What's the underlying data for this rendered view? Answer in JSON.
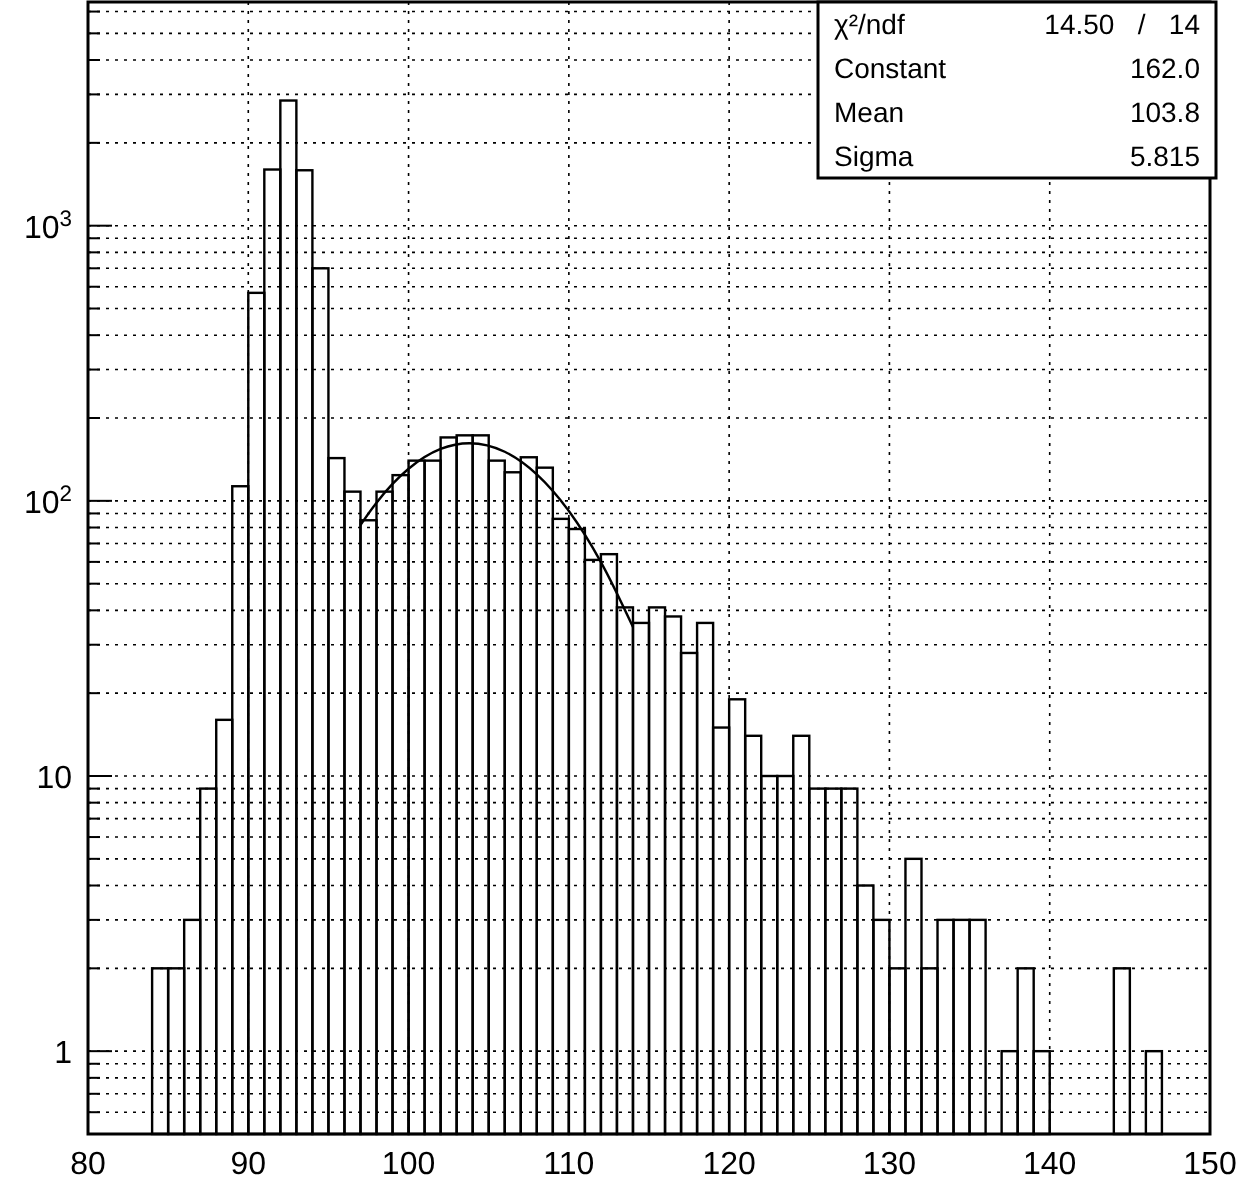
{
  "chart_data": {
    "type": "histogram",
    "bins": [
      84,
      85,
      86,
      87,
      88,
      89,
      90,
      91,
      92,
      93,
      94,
      95,
      96,
      97,
      98,
      99,
      100,
      101,
      102,
      103,
      104,
      105,
      106,
      107,
      108,
      109,
      110,
      111,
      112,
      113,
      114,
      115,
      116,
      117,
      118,
      119,
      120,
      121,
      122,
      123,
      124,
      125,
      126,
      127,
      128,
      129,
      130,
      131,
      132,
      133,
      134,
      135,
      136,
      137,
      138,
      139,
      140,
      144,
      145,
      146,
      147
    ],
    "values": [
      2,
      2,
      3,
      9,
      16,
      113,
      570,
      1600,
      2850,
      1590,
      700,
      143,
      108,
      85,
      108,
      124,
      140,
      140,
      170,
      173,
      173,
      140,
      127,
      144,
      132,
      86,
      79,
      61,
      64,
      41,
      36,
      41,
      38,
      28,
      36,
      15,
      19,
      14,
      10,
      10,
      14,
      9,
      9,
      9,
      4,
      3,
      2,
      5,
      2,
      3,
      3,
      3,
      null,
      1,
      2,
      1,
      null,
      2,
      null,
      1
    ],
    "color": "#000000",
    "series": [
      {
        "type": "line",
        "color": "#000000",
        "x": [
          97,
          98,
          100,
          102,
          103.8,
          106,
          108,
          110,
          112,
          114
        ],
        "values": [
          81.7,
          98.5,
          130.8,
          154.4,
          162,
          150.8,
          124.8,
          91.8,
          59.9,
          34.8
        ]
      }
    ],
    "log": "y",
    "xlim": [
      80,
      150
    ],
    "xticks": [
      80,
      90,
      100,
      110,
      120,
      130,
      140,
      150
    ],
    "ylim": [
      0.5,
      6500
    ],
    "yticks": [
      {
        "value": 0.6,
        "label": null
      },
      {
        "value": 0.7,
        "label": null
      },
      {
        "value": 0.8,
        "label": null
      },
      {
        "value": 0.9,
        "label": null
      },
      1,
      {
        "value": 2,
        "label": null
      },
      {
        "value": 3,
        "label": null
      },
      {
        "value": 4,
        "label": null
      },
      {
        "value": 5,
        "label": null
      },
      {
        "value": 6,
        "label": null
      },
      {
        "value": 7,
        "label": null
      },
      {
        "value": 8,
        "label": null
      },
      {
        "value": 9,
        "label": null
      },
      10,
      {
        "value": 20,
        "label": null
      },
      {
        "value": 30,
        "label": null
      },
      {
        "value": 40,
        "label": null
      },
      {
        "value": 50,
        "label": null
      },
      {
        "value": 60,
        "label": null
      },
      {
        "value": 70,
        "label": null
      },
      {
        "value": 80,
        "label": null
      },
      {
        "value": 90,
        "label": null
      },
      {
        "value": 100,
        "label": "10$^{2}$"
      },
      {
        "value": 200,
        "label": null
      },
      {
        "value": 300,
        "label": null
      },
      {
        "value": 400,
        "label": null
      },
      {
        "value": 500,
        "label": null
      },
      {
        "value": 600,
        "label": null
      },
      {
        "value": 700,
        "label": null
      },
      {
        "value": 800,
        "label": null
      },
      {
        "value": 900,
        "label": null
      },
      {
        "value": 1000,
        "label": "10$^{3}$"
      },
      {
        "value": 2000,
        "label": null
      },
      {
        "value": 3000,
        "label": null
      },
      {
        "value": 4000,
        "label": null
      },
      {
        "value": 5000,
        "label": null
      },
      {
        "value": 6000,
        "label": null
      }
    ],
    "grid": true,
    "annotations": [
      "χ²/ndf  14.50  /  14",
      "Constant  162.0",
      "Mean  103.8",
      "Sigma  5.815"
    ]
  }
}
